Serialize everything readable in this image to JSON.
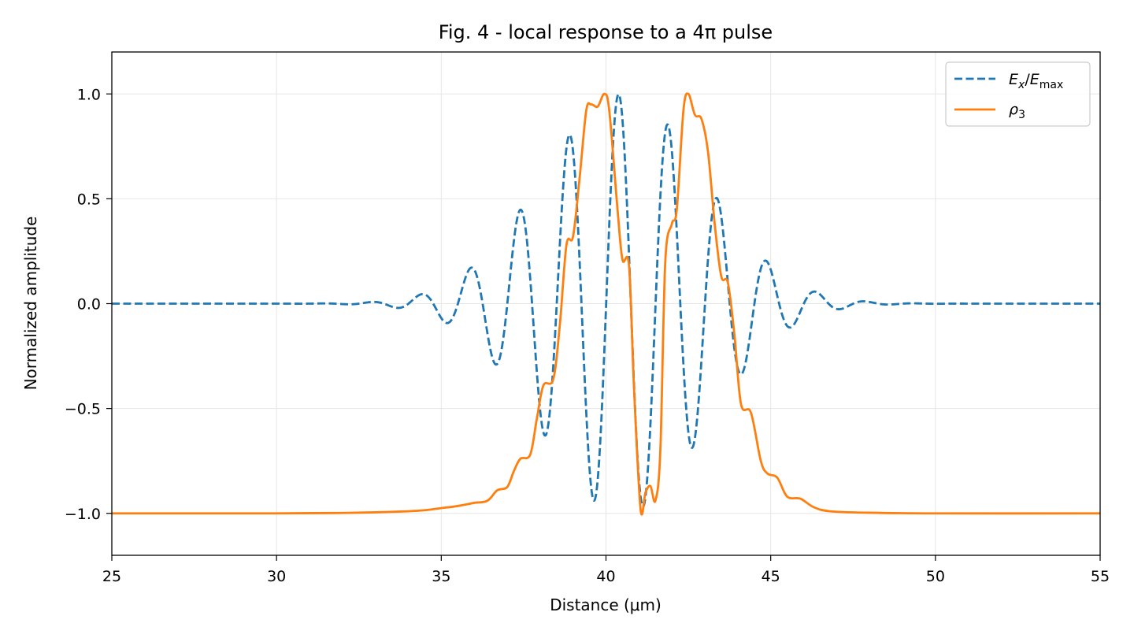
{
  "chart_data": {
    "type": "line",
    "title": "Fig. 4 - local response to a 4π pulse",
    "xlabel": "Distance (μm)",
    "ylabel": "Normalized amplitude",
    "xlim": [
      25,
      55
    ],
    "ylim": [
      -1.2,
      1.2
    ],
    "x_ticks": [
      25,
      30,
      35,
      40,
      45,
      50,
      55
    ],
    "x_tick_labels": [
      "25",
      "30",
      "35",
      "40",
      "45",
      "50",
      "55"
    ],
    "y_ticks": [
      -1.0,
      -0.5,
      0.0,
      0.5,
      1.0
    ],
    "y_tick_labels": [
      "−1.0",
      "−0.5",
      "0.0",
      "0.5",
      "1.0"
    ],
    "grid": true,
    "legend_position": "top-right",
    "series": [
      {
        "name": "E_x/E_max",
        "legend": {
          "E": "E",
          "x": "x",
          "slash": "/",
          "E2": "E",
          "max": "max"
        },
        "style": "dashed",
        "color": "#1f77b4",
        "model": {
          "center": 40.5,
          "sigma": 2.45,
          "wavelength": 1.5,
          "phase": 0.5
        }
      },
      {
        "name": "ρ3",
        "legend": {
          "rho": "ρ",
          "sub": "3"
        },
        "style": "solid",
        "color": "#ff7f0e",
        "points": [
          [
            25.0,
            -1.0
          ],
          [
            30.0,
            -1.0
          ],
          [
            32.0,
            -0.998
          ],
          [
            33.0,
            -0.995
          ],
          [
            34.0,
            -0.99
          ],
          [
            34.5,
            -0.985
          ],
          [
            35.0,
            -0.975
          ],
          [
            35.5,
            -0.965
          ],
          [
            36.0,
            -0.95
          ],
          [
            36.4,
            -0.94
          ],
          [
            36.7,
            -0.89
          ],
          [
            37.0,
            -0.875
          ],
          [
            37.2,
            -0.8
          ],
          [
            37.4,
            -0.74
          ],
          [
            37.7,
            -0.72
          ],
          [
            37.9,
            -0.55
          ],
          [
            38.1,
            -0.39
          ],
          [
            38.4,
            -0.36
          ],
          [
            38.6,
            -0.1
          ],
          [
            38.8,
            0.28
          ],
          [
            39.0,
            0.32
          ],
          [
            39.2,
            0.6
          ],
          [
            39.4,
            0.92
          ],
          [
            39.55,
            0.95
          ],
          [
            39.75,
            0.94
          ],
          [
            39.95,
            1.0
          ],
          [
            40.1,
            0.92
          ],
          [
            40.35,
            0.45
          ],
          [
            40.5,
            0.21
          ],
          [
            40.7,
            0.18
          ],
          [
            40.85,
            -0.4
          ],
          [
            41.05,
            -0.98
          ],
          [
            41.2,
            -0.9
          ],
          [
            41.35,
            -0.87
          ],
          [
            41.5,
            -0.94
          ],
          [
            41.65,
            -0.7
          ],
          [
            41.8,
            0.2
          ],
          [
            42.0,
            0.38
          ],
          [
            42.15,
            0.45
          ],
          [
            42.35,
            0.92
          ],
          [
            42.5,
            1.0
          ],
          [
            42.7,
            0.9
          ],
          [
            42.9,
            0.88
          ],
          [
            43.1,
            0.72
          ],
          [
            43.3,
            0.38
          ],
          [
            43.5,
            0.13
          ],
          [
            43.7,
            0.1
          ],
          [
            43.9,
            -0.15
          ],
          [
            44.1,
            -0.48
          ],
          [
            44.4,
            -0.52
          ],
          [
            44.7,
            -0.75
          ],
          [
            44.9,
            -0.81
          ],
          [
            45.2,
            -0.83
          ],
          [
            45.5,
            -0.92
          ],
          [
            45.9,
            -0.93
          ],
          [
            46.3,
            -0.97
          ],
          [
            46.8,
            -0.99
          ],
          [
            48.0,
            -0.997
          ],
          [
            50.0,
            -1.0
          ],
          [
            55.0,
            -1.0
          ]
        ]
      }
    ]
  }
}
